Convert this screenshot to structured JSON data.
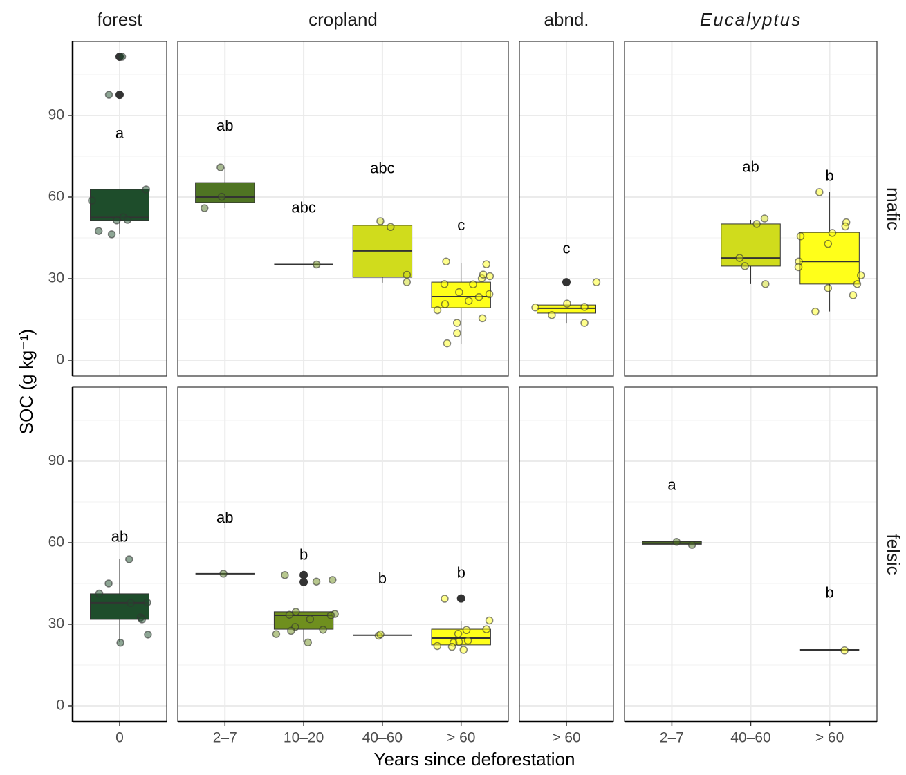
{
  "chart_data": {
    "type": "box",
    "y_label": "SOC (g kg⁻¹)",
    "x_label": "Years since deforestation",
    "ylim": [
      -5.85,
      117.2
    ],
    "yticks": [
      0,
      30,
      60,
      90
    ],
    "minor_yticks": [
      15,
      45,
      75,
      105
    ],
    "grid": true,
    "columns": [
      {
        "name": "forest",
        "categories": [
          "0"
        ]
      },
      {
        "name": "cropland",
        "categories": [
          "2–7",
          "10–20",
          "40–60",
          "> 60"
        ]
      },
      {
        "name": "abnd.",
        "categories": [
          "> 60"
        ]
      },
      {
        "name": "Eucalyptus",
        "name_style": "italic",
        "categories": [
          "2–7",
          "40–60",
          "> 60"
        ]
      }
    ],
    "rows": [
      "mafic",
      "felsic"
    ],
    "panels": [
      [
        [
          {
            "color": "#1e4d2b",
            "whisker_low": 46.3,
            "q1": 51.4,
            "median": 52.5,
            "q3": 62.8,
            "whisker_high": 62.8,
            "outliers": [
              97.6,
              111.6
            ],
            "points": [
              62.8,
              58.7,
              52.6,
              46.3,
              51.4,
              51.6,
              47.5,
              97.6,
              111.6
            ],
            "letter": "a",
            "letter_y": 83.1
          }
        ],
        [
          {
            "color": "#4f7423",
            "whisker_low": 55.9,
            "q1": 58.0,
            "median": 60.0,
            "q3": 65.3,
            "whisker_high": 70.9,
            "outliers": [],
            "points": [
              60.1,
              70.9,
              55.9
            ],
            "letter": "ab",
            "letter_y": 85.9
          },
          {
            "color": "#6f8f1e",
            "whisker_low": 35.2,
            "q1": 35.2,
            "median": 35.2,
            "q3": 35.2,
            "whisker_high": 35.2,
            "outliers": [],
            "points": [
              35.2
            ],
            "letter": "abc",
            "letter_y": 55.7
          },
          {
            "color": "#d0dc1c",
            "whisker_low": 28.5,
            "q1": 30.5,
            "median": 40.2,
            "q3": 49.6,
            "whisker_high": 51.1,
            "outliers": [],
            "points": [
              51.1,
              49.0,
              31.4,
              28.7
            ],
            "letter": "abc",
            "letter_y": 70.2
          },
          {
            "color": "#ffff1a",
            "whisker_low": 6.1,
            "q1": 19.3,
            "median": 23.4,
            "q3": 28.7,
            "whisker_high": 35.6,
            "outliers": [],
            "points": [
              36.3,
              35.3,
              30.1,
              31.5,
              30.9,
              28.0,
              27.9,
              25.0,
              24.3,
              23.2,
              21.8,
              20.6,
              18.4,
              15.4,
              13.7,
              9.9,
              6.2
            ],
            "letter": "c",
            "letter_y": 49.3
          }
        ],
        [
          {
            "color": "#ffff1a",
            "whisker_low": 13.7,
            "q1": 17.3,
            "median": 19.1,
            "q3": 20.3,
            "whisker_high": 20.3,
            "outliers": [
              28.7
            ],
            "points": [
              28.7,
              20.8,
              19.6,
              19.4,
              16.6,
              13.7
            ],
            "letter": "c",
            "letter_y": 40.7
          }
        ],
        [
          null,
          {
            "color": "#d0dc1c",
            "whisker_low": 28.0,
            "q1": 34.6,
            "median": 37.6,
            "q3": 50.1,
            "whisker_high": 51.6,
            "outliers": [],
            "points": [
              52.1,
              50.1,
              37.6,
              34.6,
              28.0
            ],
            "letter": "ab",
            "letter_y": 70.7
          },
          {
            "color": "#ffff1a",
            "whisker_low": 17.9,
            "q1": 28.0,
            "median": 36.3,
            "q3": 47.0,
            "whisker_high": 61.8,
            "outliers": [],
            "points": [
              61.8,
              50.7,
              49.2,
              46.8,
              45.6,
              42.8,
              36.3,
              34.2,
              31.2,
              28.0,
              26.5,
              23.9,
              17.9
            ],
            "letter": "b",
            "letter_y": 67.4
          }
        ]
      ],
      [
        [
          {
            "color": "#1e4d2b",
            "whisker_low": 23.4,
            "q1": 31.8,
            "median": 37.9,
            "q3": 41.2,
            "whisker_high": 53.9,
            "outliers": [],
            "points": [
              53.9,
              45.0,
              41.3,
              38.0,
              37.8,
              32.5,
              31.8,
              26.2,
              23.2
            ],
            "letter": "ab",
            "letter_y": 61.8
          }
        ],
        [
          {
            "color": "#4f7423",
            "whisker_low": 48.6,
            "q1": 48.6,
            "median": 48.6,
            "q3": 48.6,
            "whisker_high": 48.6,
            "outliers": [],
            "points": [
              48.6
            ],
            "letter": "ab",
            "letter_y": 68.9
          },
          {
            "color": "#6f8f1e",
            "whisker_low": 23.4,
            "q1": 28.2,
            "median": 33.3,
            "q3": 34.6,
            "whisker_high": 34.6,
            "outliers": [
              48.1,
              45.5
            ],
            "points": [
              48.1,
              46.3,
              45.7,
              34.6,
              33.8,
              33.5,
              33.3,
              31.9,
              29.0,
              28.0,
              27.6,
              26.4,
              23.3
            ],
            "letter": "b",
            "letter_y": 55.2
          },
          {
            "color": "#d0dc1c",
            "whisker_low": 26.0,
            "q1": 26.0,
            "median": 26.0,
            "q3": 26.0,
            "whisker_high": 26.0,
            "outliers": [],
            "points": [
              25.8,
              26.3
            ],
            "letter": "b",
            "letter_y": 46.5
          },
          {
            "color": "#ffff1a",
            "whisker_low": 20.8,
            "q1": 22.4,
            "median": 24.9,
            "q3": 28.2,
            "whisker_high": 31.3,
            "outliers": [
              39.5
            ],
            "points": [
              39.4,
              31.4,
              28.2,
              27.9,
              26.5,
              24.0,
              23.5,
              23.2,
              22.0,
              21.7,
              20.6
            ],
            "letter": "b",
            "letter_y": 48.6
          }
        ],
        [
          null
        ],
        [
          {
            "color": "#4f7423",
            "whisker_low": 59.4,
            "q1": 59.4,
            "median": 59.8,
            "q3": 60.4,
            "whisker_high": 60.4,
            "outliers": [],
            "points": [
              60.3,
              59.2
            ],
            "letter": "a",
            "letter_y": 80.9
          },
          null,
          {
            "color": "#ffff1a",
            "whisker_low": 20.6,
            "q1": 20.6,
            "median": 20.6,
            "q3": 20.6,
            "whisker_high": 20.6,
            "outliers": [],
            "points": [
              20.4
            ],
            "letter": "b",
            "letter_y": 41.2
          }
        ]
      ]
    ]
  }
}
